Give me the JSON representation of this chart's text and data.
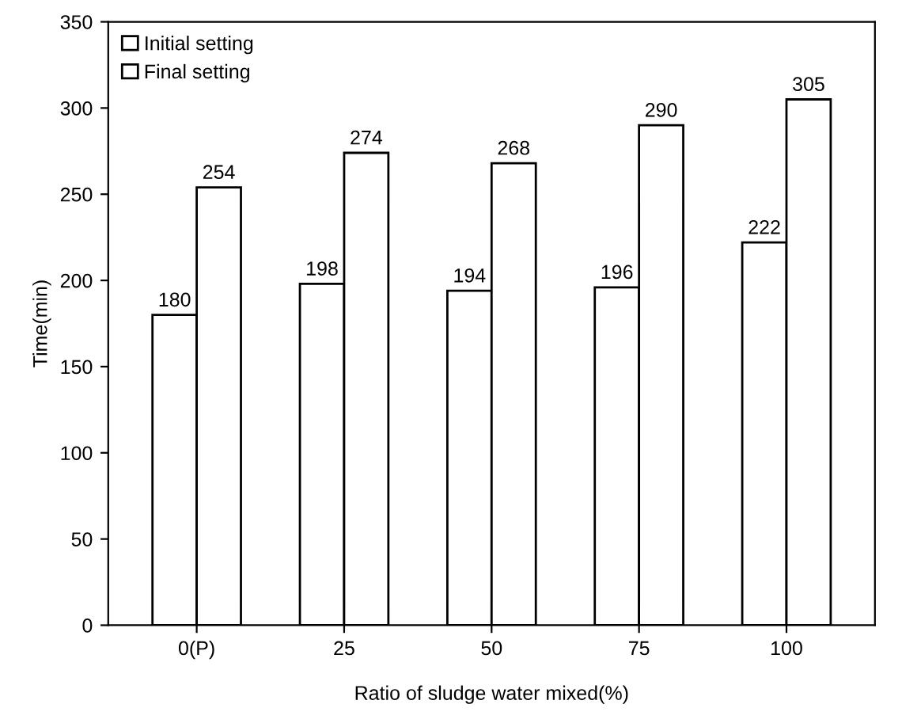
{
  "chart_data": {
    "type": "bar",
    "xlabel": "Ratio of sludge water mixed(%)",
    "ylabel": "Time(min)",
    "categories": [
      "0(P)",
      "25",
      "50",
      "75",
      "100"
    ],
    "series": [
      {
        "name": "Initial setting",
        "color": "#ffffff",
        "values": [
          180,
          198,
          194,
          196,
          222
        ]
      },
      {
        "name": "Final setting",
        "color": "#ffffff",
        "values": [
          254,
          274,
          268,
          290,
          305
        ]
      }
    ],
    "ylim": [
      0,
      350
    ],
    "yticks": [
      0,
      50,
      100,
      150,
      200,
      250,
      300,
      350
    ],
    "data_labels": true,
    "legend": "top left",
    "grid": false
  }
}
